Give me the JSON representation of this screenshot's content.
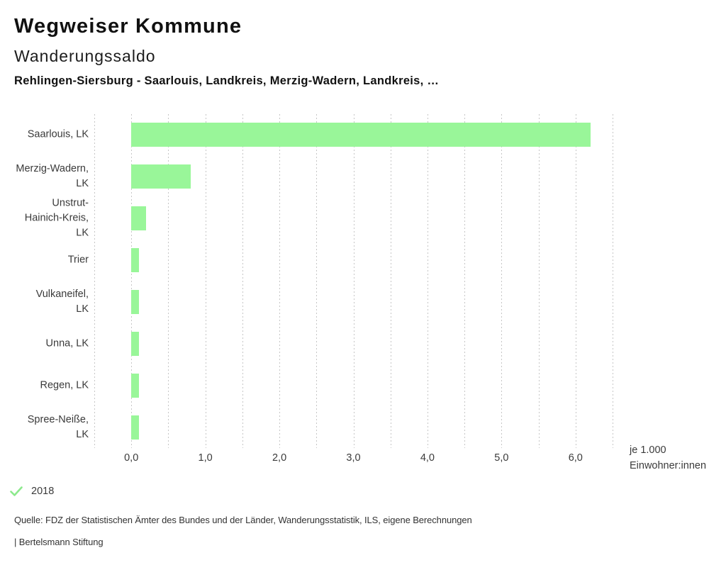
{
  "header": {
    "title": "Wegweiser Kommune",
    "subtitle": "Wanderungssaldo",
    "comparison": "Rehlingen-Siersburg - Saarlouis, Landkreis, Merzig-Wadern, Landkreis, …"
  },
  "chart_data": {
    "type": "bar",
    "orientation": "horizontal",
    "title": "Wanderungssaldo",
    "categories": [
      "Saarlouis, LK",
      "Merzig-Wadern,\nLK",
      "Unstrut-\nHainich-Kreis,\nLK",
      "Trier",
      "Vulkaneifel,\nLK",
      "Unna, LK",
      "Regen, LK",
      "Spree-Neiße,\nLK"
    ],
    "values": [
      6.2,
      0.8,
      0.2,
      0.1,
      0.1,
      0.1,
      0.1,
      0.1
    ],
    "xlim": [
      -0.5,
      6.5
    ],
    "gridline_step": 0.5,
    "grid": true,
    "x_tick_values": [
      0,
      1,
      2,
      3,
      4,
      5,
      6
    ],
    "x_tick_labels": [
      "0,0",
      "1,0",
      "2,0",
      "3,0",
      "4,0",
      "5,0",
      "6,0"
    ],
    "unit_label": "je 1.000\nEinwohner:innen",
    "bar_color": "#99f699",
    "gridline_color": "#c6c6c6",
    "legend": {
      "marker": "check",
      "label": "2018",
      "color": "#8ce98c",
      "position": "bottom-left"
    }
  },
  "footer": {
    "source": "Quelle: FDZ der Statistischen Ämter des Bundes und der Länder, Wanderungsstatistik, ILS, eigene Berechnungen",
    "attribution": "| Bertelsmann Stiftung"
  }
}
